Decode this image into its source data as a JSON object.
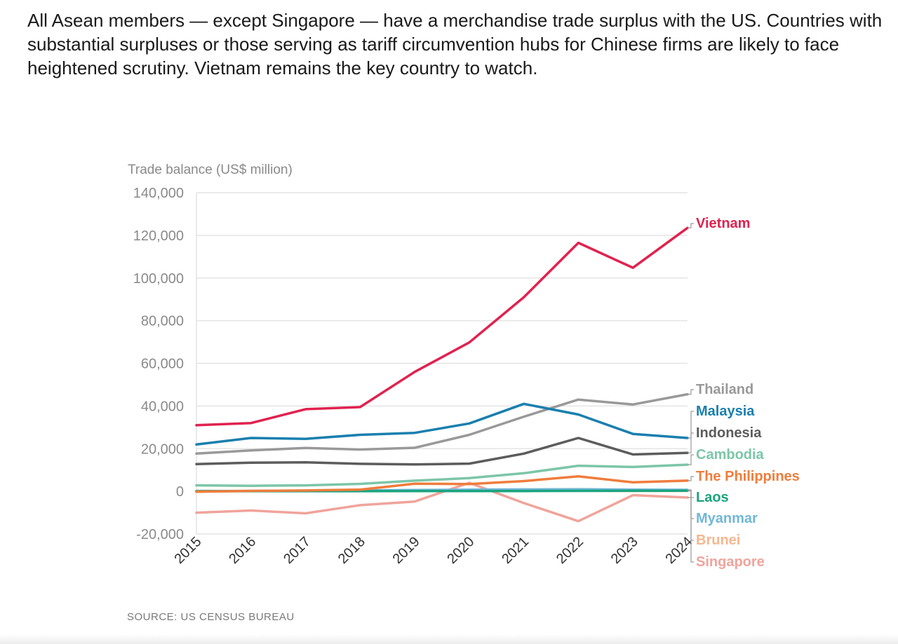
{
  "headline": "All Asean members — except Singapore — have a merchandise trade surplus with the US. Countries with substantial surpluses or those serving as tariff circumvention hubs for Chinese firms are likely to face heightened scrutiny. Vietnam remains the key country to watch.",
  "source": "SOURCE: US CENSUS BUREAU",
  "chart_data": {
    "type": "line",
    "ylabel": "Trade balance (US$ million)",
    "xlabel": "",
    "ylim": [
      -20000,
      140000
    ],
    "yticks": [
      -20000,
      0,
      20000,
      40000,
      60000,
      80000,
      100000,
      120000,
      140000
    ],
    "ytick_labels": [
      "-20,000",
      "0",
      "20,000",
      "40,000",
      "60,000",
      "80,000",
      "100,000",
      "120,000",
      "140,000"
    ],
    "x": [
      "2015",
      "2016",
      "2017",
      "2018",
      "2019",
      "2020",
      "2021",
      "2022",
      "2023",
      "2024"
    ],
    "grid": "horizontal",
    "legend": "right, direct labels",
    "series": [
      {
        "name": "Singapore",
        "color": "#f0a49b",
        "values": [
          -10000,
          -9000,
          -10300,
          -6500,
          -4800,
          4000,
          -5500,
          -14000,
          -1800,
          -2900
        ]
      },
      {
        "name": "Brunei",
        "color": "#f6b78f",
        "values": [
          200,
          100,
          150,
          300,
          250,
          300,
          400,
          300,
          200,
          200
        ]
      },
      {
        "name": "Myanmar",
        "color": "#72b7d6",
        "values": [
          0,
          200,
          300,
          400,
          600,
          800,
          900,
          1000,
          800,
          700
        ]
      },
      {
        "name": "Laos",
        "color": "#1aa47f",
        "values": [
          50,
          60,
          70,
          80,
          100,
          120,
          150,
          200,
          250,
          300
        ]
      },
      {
        "name": "The Philippines",
        "color": "#ef7d3c",
        "values": [
          -200,
          200,
          400,
          800,
          3600,
          3400,
          4800,
          7000,
          4200,
          5000
        ]
      },
      {
        "name": "Cambodia",
        "color": "#7cc6a8",
        "values": [
          2800,
          2600,
          2800,
          3500,
          5000,
          6200,
          8500,
          12000,
          11400,
          12500
        ]
      },
      {
        "name": "Indonesia",
        "color": "#5c5c5c",
        "values": [
          12800,
          13400,
          13600,
          12900,
          12600,
          13000,
          17700,
          25000,
          17300,
          18000
        ]
      },
      {
        "name": "Thailand",
        "color": "#999999",
        "values": [
          17700,
          19200,
          20300,
          19600,
          20400,
          26500,
          35000,
          43000,
          40700,
          45500
        ]
      },
      {
        "name": "Malaysia",
        "color": "#1a7fae",
        "values": [
          22000,
          25000,
          24600,
          26500,
          27400,
          31800,
          41000,
          36000,
          26900,
          25000
        ]
      },
      {
        "name": "Vietnam",
        "color": "#e0224f",
        "values": [
          31000,
          32000,
          38500,
          39500,
          56000,
          69800,
          91000,
          116500,
          104800,
          123500
        ]
      }
    ]
  }
}
